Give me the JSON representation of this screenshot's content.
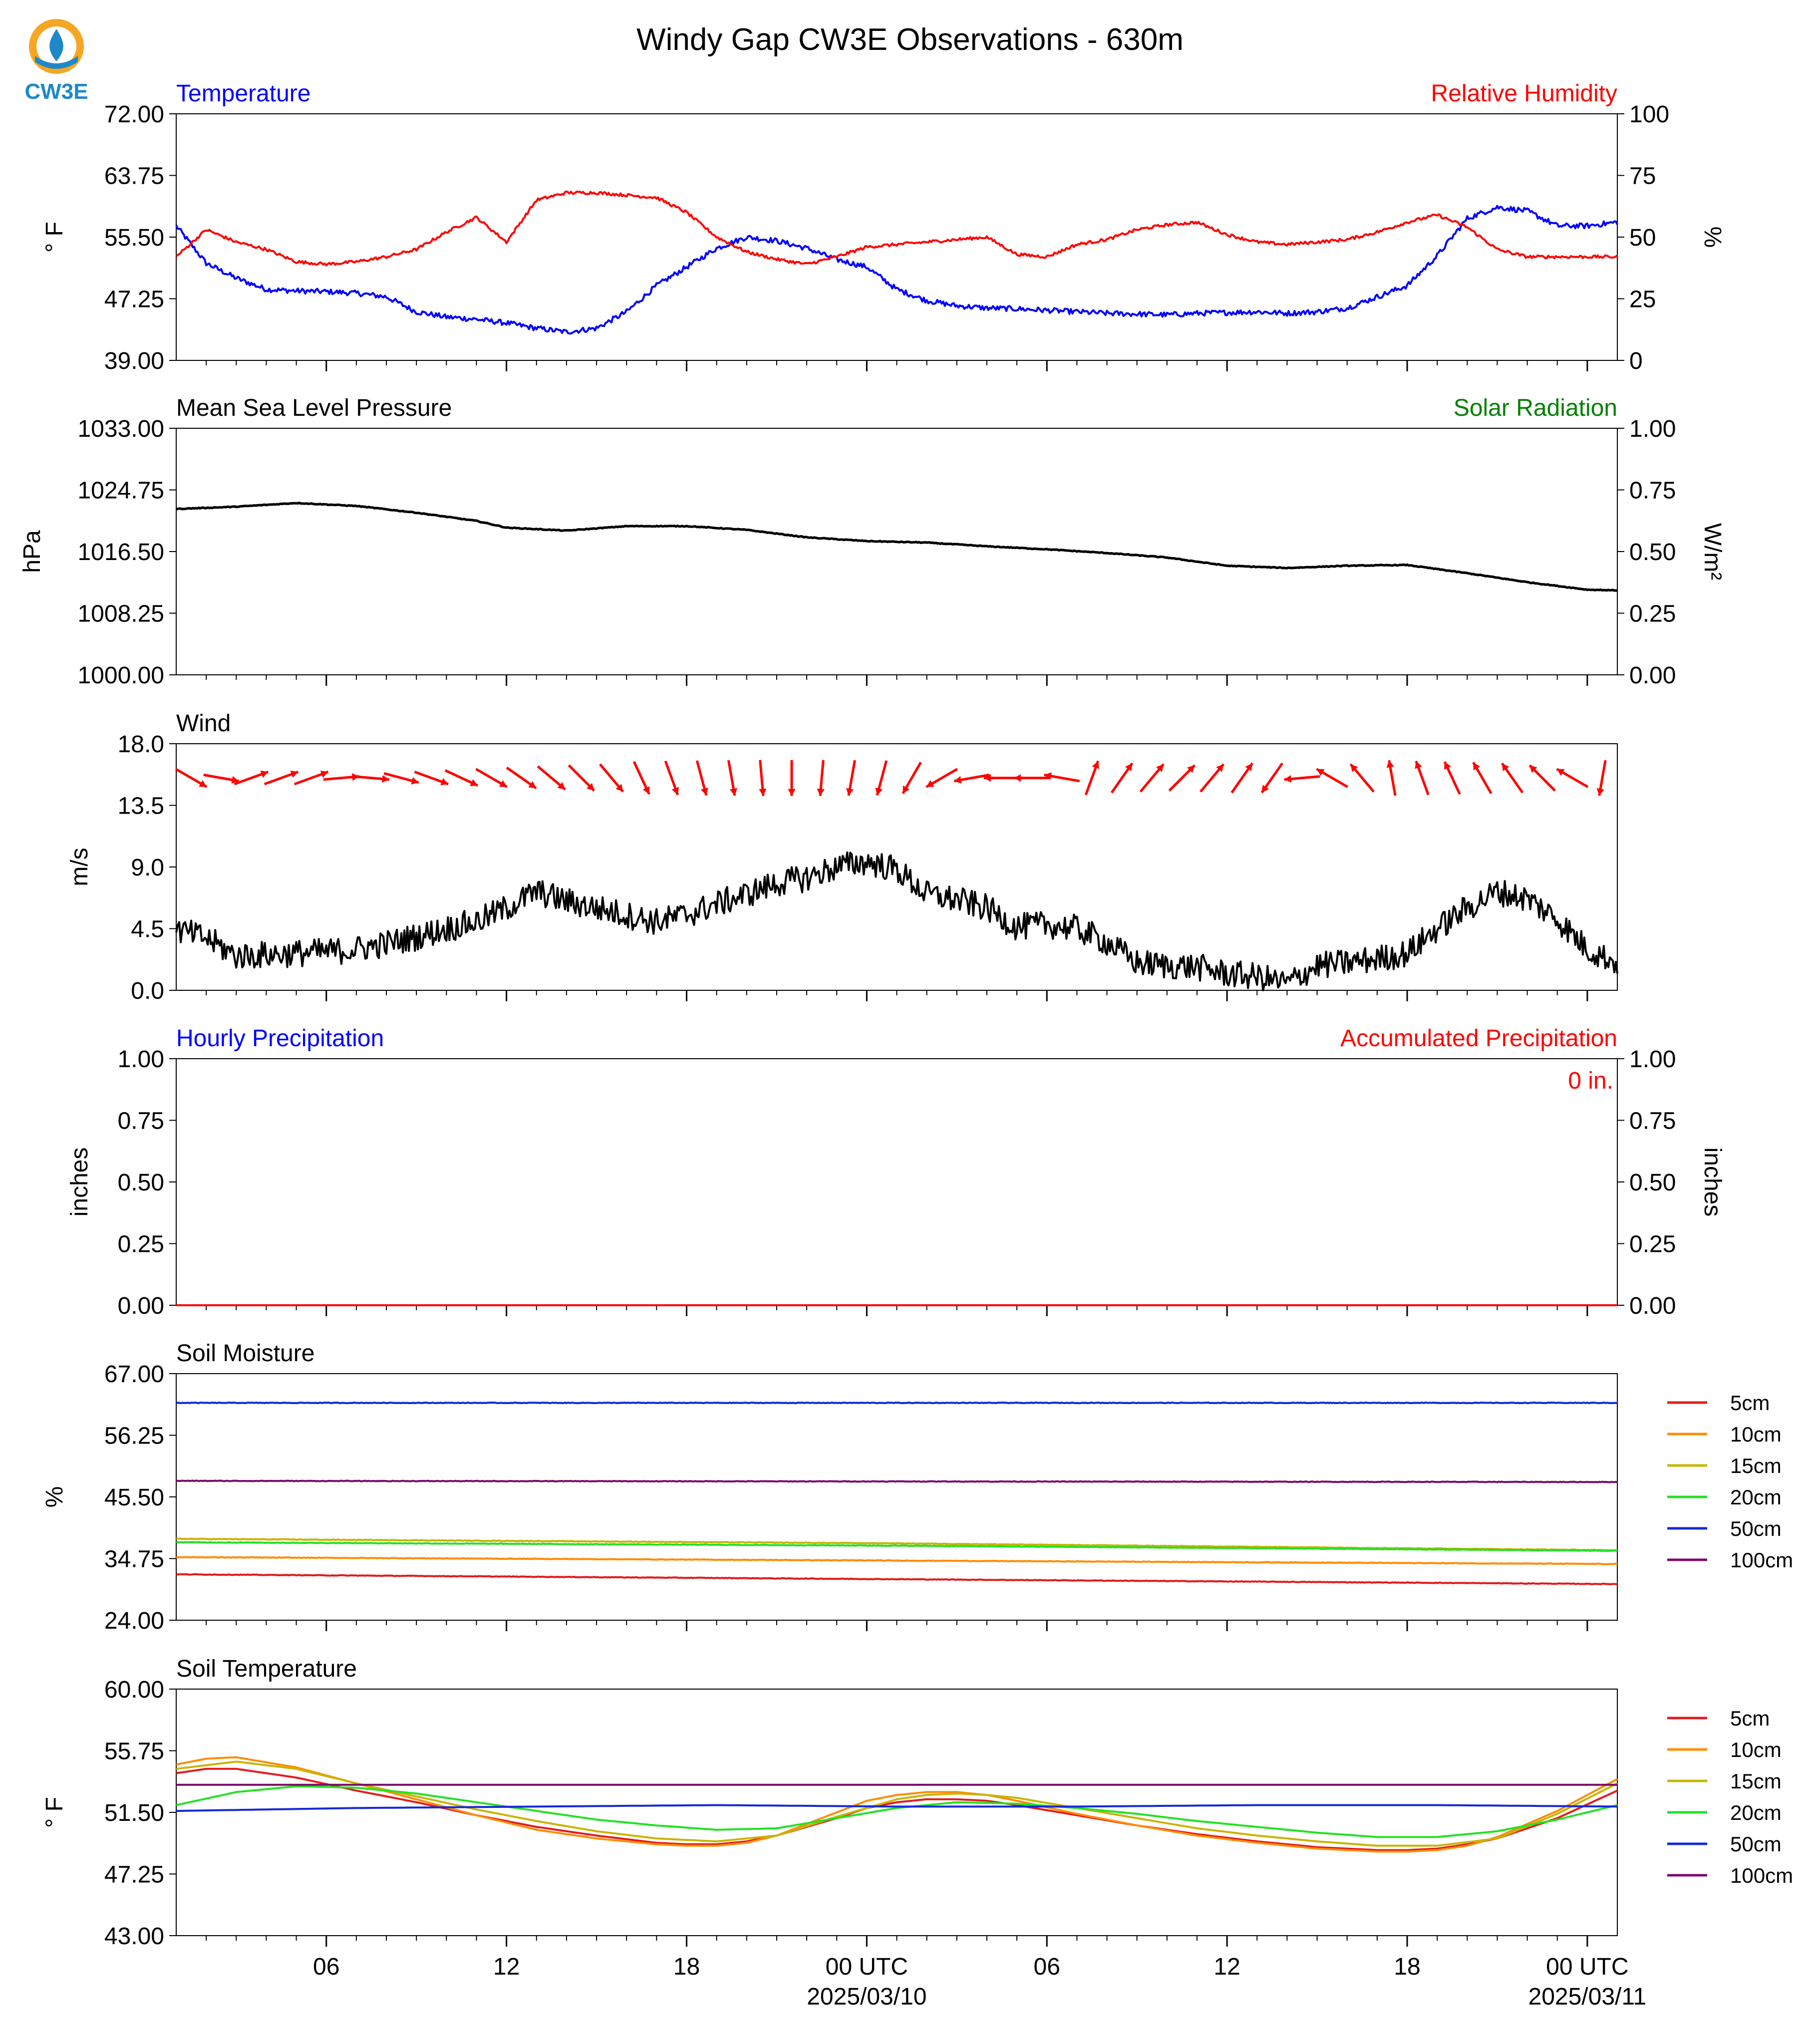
{
  "page_title": "Windy Gap CW3E Observations - 630m",
  "logo": {
    "text": "CW3E",
    "icon": "cw3e-logo-icon",
    "ring_color": "#F5A623",
    "drop_color": "#1E88C8"
  },
  "colors": {
    "blue": "#0000FF",
    "red": "#FF0000",
    "green": "#008000",
    "black": "#000000",
    "soil": {
      "5cm": "#E41A1C",
      "10cm": "#FF8C00",
      "15cm": "#C8B400",
      "20cm": "#22E222",
      "50cm": "#1428D8",
      "100cm": "#7B0A6A"
    }
  },
  "x_axis": {
    "range_hours": [
      0,
      48
    ],
    "ticks": [
      {
        "hour": 5,
        "label": "06"
      },
      {
        "hour": 11,
        "label": "12"
      },
      {
        "hour": 17,
        "label": "18"
      },
      {
        "hour": 23,
        "label": "00 UTC",
        "sublabel": "2025/03/10"
      },
      {
        "hour": 29,
        "label": "06"
      },
      {
        "hour": 35,
        "label": "12"
      },
      {
        "hour": 41,
        "label": "18"
      },
      {
        "hour": 47,
        "label": "00 UTC",
        "sublabel": "2025/03/11"
      }
    ],
    "minor_every_hours": 1
  },
  "chart_data": [
    {
      "type": "line",
      "panel": "temperature_rh",
      "title_left": "Temperature",
      "title_right": "Relative Humidity",
      "ylabel": "° F",
      "ylim": [
        39.0,
        72.0
      ],
      "yticks": [
        "39.00",
        "47.25",
        "55.50",
        "63.75",
        "72.00"
      ],
      "y2label": "%",
      "y2lim": [
        0,
        100
      ],
      "y2ticks": [
        "0",
        "25",
        "50",
        "75",
        "100"
      ],
      "series": [
        {
          "key": "temperature",
          "color": "#0000FF",
          "axis": "left",
          "noise": 0.35,
          "x": [
            0,
            1,
            2,
            3,
            4,
            5,
            6,
            7,
            8,
            9,
            10,
            11,
            12,
            13,
            14,
            15,
            16,
            17,
            18,
            19,
            20,
            21,
            22,
            23,
            24,
            25,
            26,
            27,
            28,
            29,
            30,
            31,
            32,
            33,
            34,
            35,
            36,
            37,
            38,
            39,
            40,
            41,
            42,
            43,
            44,
            45,
            46,
            47,
            48
          ],
          "y": [
            57,
            52,
            50,
            48.5,
            48.3,
            48.2,
            48,
            47.5,
            45.5,
            44.8,
            44.5,
            44,
            43.3,
            42.8,
            43.3,
            45.5,
            49,
            51.5,
            54,
            55.5,
            55,
            54,
            52.5,
            51.5,
            48.5,
            47,
            46.3,
            46,
            45.9,
            45.7,
            45.5,
            45.3,
            45.2,
            45.1,
            45.3,
            45.4,
            45.5,
            45.3,
            45.5,
            46,
            47.5,
            49,
            53,
            58,
            59.5,
            59,
            57,
            57,
            57.5
          ]
        },
        {
          "key": "relative_humidity",
          "color": "#FF0000",
          "axis": "right",
          "noise": 0.6,
          "x": [
            0,
            1,
            2,
            3,
            4,
            5,
            6,
            7,
            8,
            9,
            10,
            11,
            12,
            13,
            14,
            15,
            16,
            17,
            18,
            19,
            20,
            21,
            22,
            23,
            24,
            25,
            26,
            27,
            28,
            29,
            30,
            31,
            32,
            33,
            34,
            35,
            36,
            37,
            38,
            39,
            40,
            41,
            42,
            43,
            44,
            45,
            46,
            47,
            48
          ],
          "y": [
            42,
            53,
            48,
            45,
            40,
            39,
            40,
            42,
            45,
            52,
            58,
            48,
            65,
            68,
            68,
            67,
            66,
            60,
            50,
            44,
            41,
            39,
            42,
            46,
            47,
            48,
            49,
            50,
            43,
            42,
            47,
            49,
            53,
            55,
            56,
            51,
            48,
            47,
            48,
            49,
            52,
            56,
            59,
            54,
            45,
            42,
            42,
            42,
            42
          ]
        }
      ]
    },
    {
      "type": "line",
      "panel": "pressure_solar",
      "title_left": "Mean Sea Level Pressure",
      "title_right": "Solar Radiation",
      "ylabel": "hPa",
      "ylim": [
        1000.0,
        1033.0
      ],
      "yticks": [
        "1000.00",
        "1008.25",
        "1016.50",
        "1024.75",
        "1033.00"
      ],
      "y2label": "W/m²",
      "y2lim": [
        0.0,
        1.0
      ],
      "y2ticks": [
        "0.00",
        "0.25",
        "0.50",
        "0.75",
        "1.00"
      ],
      "series": [
        {
          "key": "msl_pressure",
          "color": "#000000",
          "axis": "left",
          "noise": 0.05,
          "x": [
            0,
            2,
            4,
            6,
            8,
            10,
            11,
            13,
            15,
            17,
            19,
            21,
            23,
            25,
            27,
            29,
            31,
            33,
            35,
            37,
            39,
            41,
            43,
            45,
            47,
            48
          ],
          "y": [
            1022.2,
            1022.5,
            1023,
            1022.6,
            1021.7,
            1020.6,
            1019.7,
            1019.3,
            1019.9,
            1019.9,
            1019.4,
            1018.4,
            1017.9,
            1017.7,
            1017.2,
            1016.8,
            1016.3,
            1015.7,
            1014.6,
            1014.3,
            1014.6,
            1014.7,
            1013.6,
            1012.4,
            1011.4,
            1011.3
          ]
        }
      ]
    },
    {
      "type": "line",
      "panel": "wind",
      "title_left": "Wind",
      "ylabel": "m/s",
      "ylim": [
        0.0,
        18.0
      ],
      "yticks": [
        "0.0",
        "4.5",
        "9.0",
        "13.5",
        "18.0"
      ],
      "arrow_y": 15.5,
      "arrow_color": "#FF0000",
      "series": [
        {
          "key": "wind_speed",
          "color": "#000000",
          "axis": "left",
          "noise": 1.0,
          "x": [
            0,
            1,
            2,
            3,
            4,
            5,
            6,
            7,
            8,
            9,
            10,
            11,
            12,
            13,
            14,
            15,
            16,
            17,
            18,
            19,
            20,
            21,
            22,
            23,
            24,
            25,
            26,
            27,
            28,
            29,
            30,
            31,
            32,
            33,
            34,
            35,
            36,
            37,
            38,
            39,
            40,
            41,
            42,
            43,
            44,
            45,
            46,
            47,
            48
          ],
          "y": [
            4.4,
            3.8,
            2.5,
            2.6,
            2.7,
            2.8,
            3,
            3.4,
            3.9,
            4.5,
            5,
            6,
            7.2,
            6.5,
            6,
            5.5,
            5,
            5.5,
            6.3,
            7,
            7.8,
            8.2,
            9,
            9.4,
            8.8,
            7,
            6.6,
            6,
            4.6,
            4.8,
            4.5,
            3.5,
            2.0,
            1.8,
            1.7,
            1.2,
            1.0,
            0.5,
            1.8,
            2.0,
            2.3,
            2.7,
            4.5,
            6,
            7.2,
            6.7,
            5.2,
            3.0,
            2.0
          ]
        }
      ],
      "wind_arrows_deg": [
        120,
        100,
        70,
        70,
        70,
        85,
        95,
        105,
        110,
        115,
        120,
        125,
        130,
        135,
        140,
        155,
        160,
        165,
        170,
        175,
        180,
        185,
        190,
        195,
        210,
        240,
        260,
        270,
        270,
        280,
        20,
        35,
        40,
        45,
        40,
        35,
        215,
        265,
        300,
        320,
        350,
        340,
        335,
        330,
        325,
        315,
        300,
        190
      ]
    },
    {
      "type": "line",
      "panel": "precipitation",
      "title_left": "Hourly Precipitation",
      "title_right": "Accumulated Precipitation",
      "annotation": "0 in.",
      "ylabel": "inches",
      "ylim": [
        0.0,
        1.0
      ],
      "yticks": [
        "0.00",
        "0.25",
        "0.50",
        "0.75",
        "1.00"
      ],
      "y2label": "inches",
      "y2lim": [
        0.0,
        1.0
      ],
      "y2ticks": [
        "0.00",
        "0.25",
        "0.50",
        "0.75",
        "1.00"
      ],
      "series": [
        {
          "key": "accumulated",
          "color": "#FF0000",
          "axis": "right",
          "noise": 0,
          "x": [
            0,
            48
          ],
          "y": [
            0,
            0
          ]
        }
      ]
    },
    {
      "type": "line",
      "panel": "soil_moisture",
      "title_left": "Soil Moisture",
      "ylabel": "%",
      "ylim": [
        24.0,
        67.0
      ],
      "yticks": [
        "24.00",
        "34.75",
        "45.50",
        "56.25",
        "67.00"
      ],
      "legend_position": "right",
      "series": [
        {
          "name": "5cm",
          "color": "#E41A1C",
          "noise": 0.05,
          "x": [
            0,
            48
          ],
          "y": [
            32.0,
            30.3
          ]
        },
        {
          "name": "10cm",
          "color": "#FF8C00",
          "noise": 0.05,
          "x": [
            0,
            48
          ],
          "y": [
            35.0,
            33.8
          ]
        },
        {
          "name": "15cm",
          "color": "#C8B400",
          "noise": 0.05,
          "x": [
            0,
            24,
            48
          ],
          "y": [
            38.2,
            37.4,
            36.2
          ]
        },
        {
          "name": "20cm",
          "color": "#22E222",
          "noise": 0.05,
          "x": [
            0,
            24,
            48
          ],
          "y": [
            37.6,
            37.0,
            36.1
          ]
        },
        {
          "name": "50cm",
          "color": "#1428D8",
          "noise": 0.05,
          "x": [
            0,
            48
          ],
          "y": [
            61.9,
            61.9
          ]
        },
        {
          "name": "100cm",
          "color": "#7B0A6A",
          "noise": 0.05,
          "x": [
            0,
            48
          ],
          "y": [
            48.3,
            48.1
          ]
        }
      ]
    },
    {
      "type": "line",
      "panel": "soil_temperature",
      "title_left": "Soil Temperature",
      "ylabel": "° F",
      "ylim": [
        43.0,
        60.0
      ],
      "yticks": [
        "43.00",
        "47.25",
        "51.50",
        "55.75",
        "60.00"
      ],
      "legend_position": "right",
      "series": [
        {
          "name": "5cm",
          "color": "#E41A1C",
          "noise": 0,
          "x": [
            0,
            1,
            2,
            4,
            6,
            8,
            10,
            12,
            14,
            16,
            17,
            18,
            19,
            20,
            22,
            23,
            24,
            25,
            26,
            27,
            28,
            30,
            32,
            34,
            36,
            38,
            40,
            41,
            42,
            43,
            44,
            46,
            48
          ],
          "y": [
            54.2,
            54.5,
            54.5,
            53.9,
            53,
            52.2,
            51.3,
            50.5,
            49.9,
            49.4,
            49.3,
            49.3,
            49.5,
            49.9,
            51.1,
            51.8,
            52.2,
            52.4,
            52.4,
            52.3,
            52,
            51.3,
            50.6,
            50,
            49.5,
            49.1,
            48.9,
            48.9,
            49,
            49.3,
            49.7,
            51.1,
            53.0
          ]
        },
        {
          "name": "10cm",
          "color": "#FF8C00",
          "noise": 0,
          "x": [
            0,
            1,
            2,
            4,
            6,
            8,
            10,
            12,
            14,
            16,
            17,
            18,
            19,
            20,
            22,
            23,
            24,
            25,
            26,
            27,
            28,
            30,
            32,
            34,
            36,
            38,
            40,
            41,
            42,
            43,
            44,
            46,
            48
          ],
          "y": [
            54.8,
            55.2,
            55.3,
            54.6,
            53.5,
            52.4,
            51.3,
            50.3,
            49.7,
            49.3,
            49.2,
            49.2,
            49.4,
            49.9,
            51.5,
            52.3,
            52.7,
            52.9,
            52.9,
            52.7,
            52.3,
            51.4,
            50.6,
            49.9,
            49.4,
            49.0,
            48.8,
            48.8,
            48.9,
            49.2,
            49.8,
            51.6,
            53.8
          ]
        },
        {
          "name": "15cm",
          "color": "#C8B400",
          "noise": 0,
          "x": [
            0,
            2,
            4,
            6,
            8,
            10,
            12,
            14,
            16,
            18,
            20,
            22,
            24,
            25,
            26,
            27,
            28,
            30,
            32,
            34,
            36,
            38,
            40,
            42,
            44,
            46,
            48
          ],
          "y": [
            54.5,
            55.0,
            54.5,
            53.5,
            52.6,
            51.7,
            50.9,
            50.2,
            49.7,
            49.5,
            49.9,
            51.2,
            52.4,
            52.7,
            52.8,
            52.7,
            52.5,
            51.8,
            51.1,
            50.4,
            49.9,
            49.5,
            49.2,
            49.2,
            49.7,
            51.4,
            53.5
          ]
        },
        {
          "name": "20cm",
          "color": "#22E222",
          "noise": 0,
          "x": [
            0,
            2,
            4,
            6,
            8,
            10,
            12,
            14,
            16,
            18,
            20,
            22,
            24,
            26,
            28,
            30,
            32,
            34,
            36,
            38,
            40,
            42,
            44,
            46,
            48
          ],
          "y": [
            52.0,
            52.9,
            53.3,
            53.2,
            52.8,
            52.2,
            51.6,
            51.0,
            50.6,
            50.3,
            50.4,
            51.1,
            51.8,
            52.2,
            52.1,
            51.8,
            51.4,
            50.9,
            50.5,
            50.1,
            49.8,
            49.8,
            50.2,
            51.0,
            52.0
          ]
        },
        {
          "name": "50cm",
          "color": "#1428D8",
          "noise": 0,
          "x": [
            0,
            6,
            12,
            18,
            24,
            30,
            36,
            42,
            48
          ],
          "y": [
            51.6,
            51.8,
            51.9,
            52.0,
            51.9,
            51.9,
            52.0,
            52.0,
            51.9
          ]
        },
        {
          "name": "100cm",
          "color": "#7B0A6A",
          "noise": 0,
          "x": [
            0,
            48
          ],
          "y": [
            53.4,
            53.4
          ]
        }
      ]
    }
  ]
}
